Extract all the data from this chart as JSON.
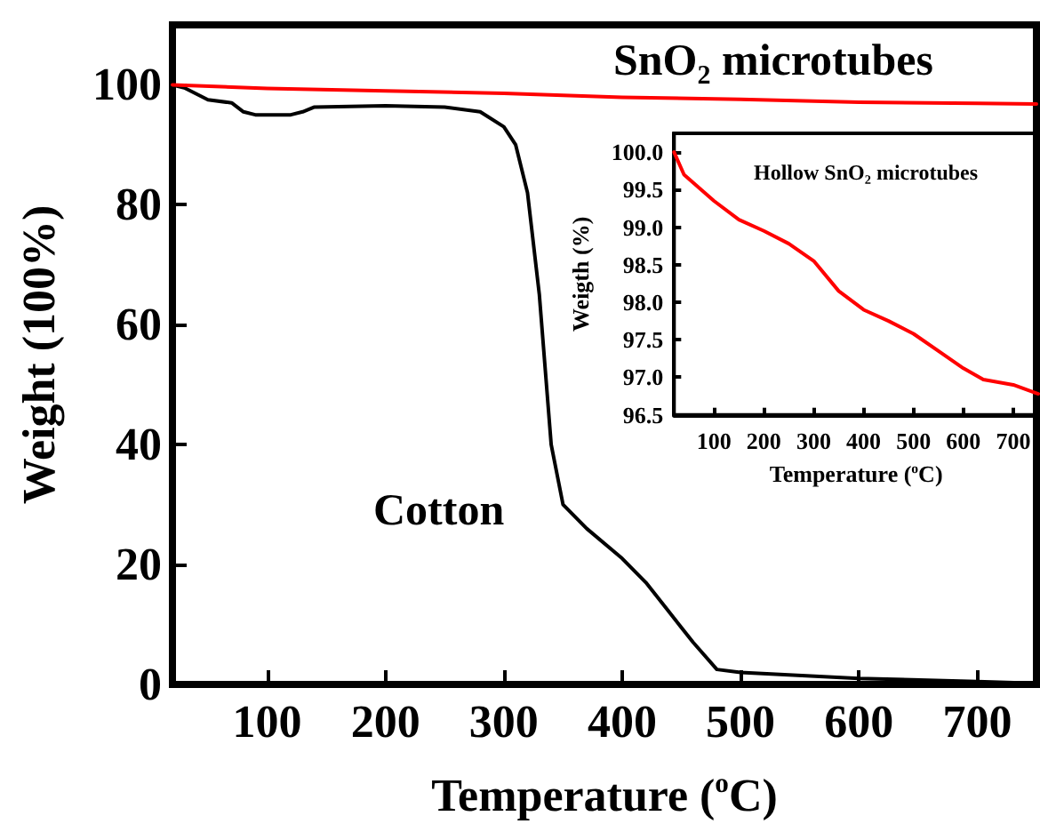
{
  "chart_data": [
    {
      "type": "line",
      "xlabel": "Temperature ($^{o}$C)",
      "ylabel": "Weight (100%)",
      "xlim": [
        20,
        750
      ],
      "ylim": [
        0,
        110
      ],
      "xticks": [
        100,
        200,
        300,
        400,
        500,
        600,
        700
      ],
      "yticks": [
        0,
        20,
        40,
        60,
        80,
        100
      ],
      "marker": "none",
      "series": [
        {
          "name": "Cotton",
          "color": "#000000",
          "x": [
            20,
            30,
            50,
            70,
            80,
            90,
            120,
            130,
            140,
            200,
            250,
            280,
            300,
            310,
            320,
            330,
            340,
            350,
            370,
            400,
            420,
            440,
            460,
            480,
            500,
            600,
            700,
            750
          ],
          "values": [
            100,
            99.5,
            97.5,
            97,
            95.5,
            95,
            95,
            95.5,
            96.3,
            96.5,
            96.3,
            95.5,
            93,
            90,
            82,
            65,
            40,
            30,
            26,
            21,
            17,
            12,
            7,
            2.5,
            2,
            1,
            0.5,
            0.2
          ]
        },
        {
          "name": "SnO₂ microtubes",
          "color": "#ff0000",
          "x": [
            20,
            100,
            200,
            300,
            400,
            500,
            600,
            700,
            750
          ],
          "values": [
            100,
            99.4,
            99,
            98.6,
            97.9,
            97.6,
            97.1,
            96.9,
            96.8
          ]
        }
      ]
    },
    {
      "type": "line",
      "xlabel": "Temperature ($^{o}$C)",
      "ylabel": "Weigth (%)",
      "xlim": [
        20,
        750
      ],
      "ylim": [
        96.5,
        100.25
      ],
      "xticks": [
        100,
        200,
        300,
        400,
        500,
        600,
        700
      ],
      "yticks": [
        96.5,
        {
          "value": 97,
          "label": "97.0"
        },
        97.5,
        {
          "value": 98,
          "label": "98.0"
        },
        98.5,
        {
          "value": 99,
          "label": "99.0"
        },
        99.5,
        {
          "value": 100,
          "label": "100.0"
        }
      ],
      "marker": "none",
      "series": [
        {
          "name": "Hollow SnO₂ microtubes",
          "color": "#ff0000",
          "x": [
            20,
            40,
            100,
            150,
            200,
            250,
            300,
            350,
            400,
            450,
            500,
            550,
            600,
            640,
            700,
            750
          ],
          "values": [
            100,
            99.7,
            99.35,
            99.1,
            98.95,
            98.78,
            98.55,
            98.15,
            97.9,
            97.75,
            97.58,
            97.35,
            97.12,
            96.97,
            96.9,
            96.78
          ]
        }
      ]
    }
  ]
}
